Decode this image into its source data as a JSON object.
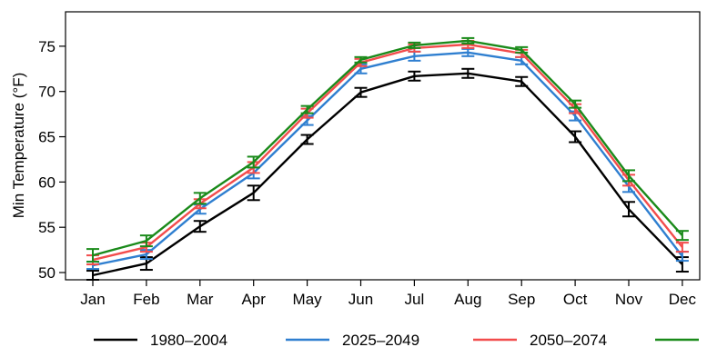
{
  "chart_data": {
    "type": "line",
    "title": "",
    "xlabel": "",
    "ylabel": "Min Temperature (°F)",
    "categories": [
      "Jan",
      "Feb",
      "Mar",
      "Apr",
      "May",
      "Jun",
      "Jul",
      "Aug",
      "Sep",
      "Oct",
      "Nov",
      "Dec"
    ],
    "ylim": [
      49.2,
      78.8
    ],
    "yticks": [
      50,
      55,
      60,
      65,
      70,
      75
    ],
    "grid": false,
    "legend_position": "bottom",
    "series": [
      {
        "name": "1980–2004",
        "color": "#000000",
        "values": [
          49.7,
          51.0,
          55.1,
          58.8,
          64.7,
          69.9,
          71.7,
          72.0,
          71.1,
          65.0,
          57.0,
          50.9
        ],
        "err": [
          0.5,
          0.7,
          0.6,
          0.8,
          0.5,
          0.5,
          0.5,
          0.5,
          0.5,
          0.6,
          0.8,
          0.8
        ]
      },
      {
        "name": "2025–2049",
        "color": "#2f7fd0",
        "values": [
          50.8,
          52.0,
          57.0,
          61.0,
          66.8,
          72.5,
          73.9,
          74.3,
          73.4,
          67.3,
          59.5,
          51.8
        ],
        "err": [
          0.4,
          0.5,
          0.5,
          0.6,
          0.5,
          0.5,
          0.5,
          0.4,
          0.4,
          0.5,
          0.6,
          0.5
        ]
      },
      {
        "name": "2050–2074",
        "color": "#f24c4c",
        "values": [
          51.4,
          52.8,
          57.6,
          61.6,
          67.6,
          73.2,
          74.8,
          75.2,
          74.2,
          68.1,
          60.2,
          52.8
        ],
        "err": [
          0.5,
          0.5,
          0.5,
          0.6,
          0.5,
          0.4,
          0.4,
          0.4,
          0.4,
          0.5,
          0.6,
          0.5
        ]
      },
      {
        "name": "",
        "color": "#1a8a1a",
        "values": [
          51.9,
          53.5,
          58.2,
          62.2,
          68.0,
          73.5,
          75.1,
          75.6,
          74.6,
          68.6,
          60.7,
          54.1
        ],
        "err": [
          0.7,
          0.6,
          0.6,
          0.6,
          0.4,
          0.3,
          0.3,
          0.3,
          0.3,
          0.4,
          0.6,
          0.5
        ]
      }
    ]
  }
}
